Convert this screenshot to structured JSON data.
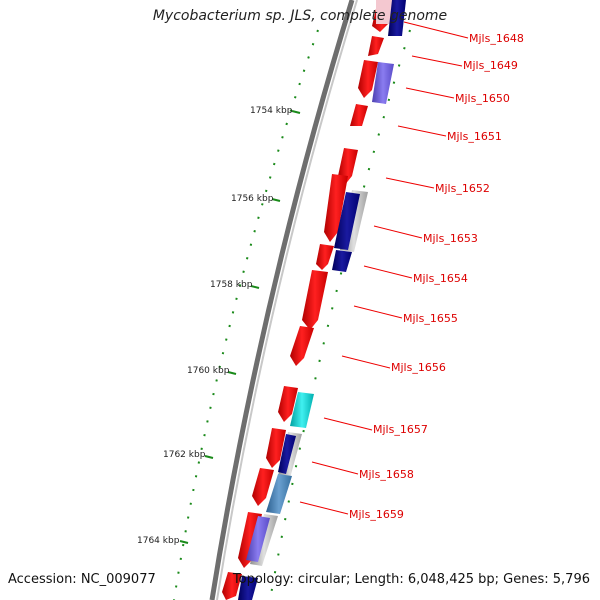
{
  "title": "Mycobacterium sp. JLS, complete genome",
  "footer": {
    "accession": "Accession: NC_009077",
    "topology": "Topology: circular; Length: 6,048,425 bp; Genes: 5,796"
  },
  "scale_ticks": [
    "1754 kbp",
    "1756 kbp",
    "1758 kbp",
    "1760 kbp",
    "1762 kbp",
    "1764 kbp"
  ],
  "gene_labels": [
    "Mjls_1648",
    "Mjls_1649",
    "Mjls_1650",
    "Mjls_1651",
    "Mjls_1652",
    "Mjls_1653",
    "Mjls_1654",
    "Mjls_1655",
    "Mjls_1656",
    "Mjls_1657",
    "Mjls_1658",
    "Mjls_1659"
  ],
  "colors": {
    "cds_forward": "#ee0000",
    "backbone": "#777777",
    "scale_ticks": "#1a8a1a",
    "label": "#dd0000",
    "annotation_navy": "#000088",
    "annotation_purple": "#6a5acd",
    "annotation_cyan": "#00c8c8",
    "annotation_steel": "#4682b4",
    "annotation_gray": "#b0b0b0"
  }
}
